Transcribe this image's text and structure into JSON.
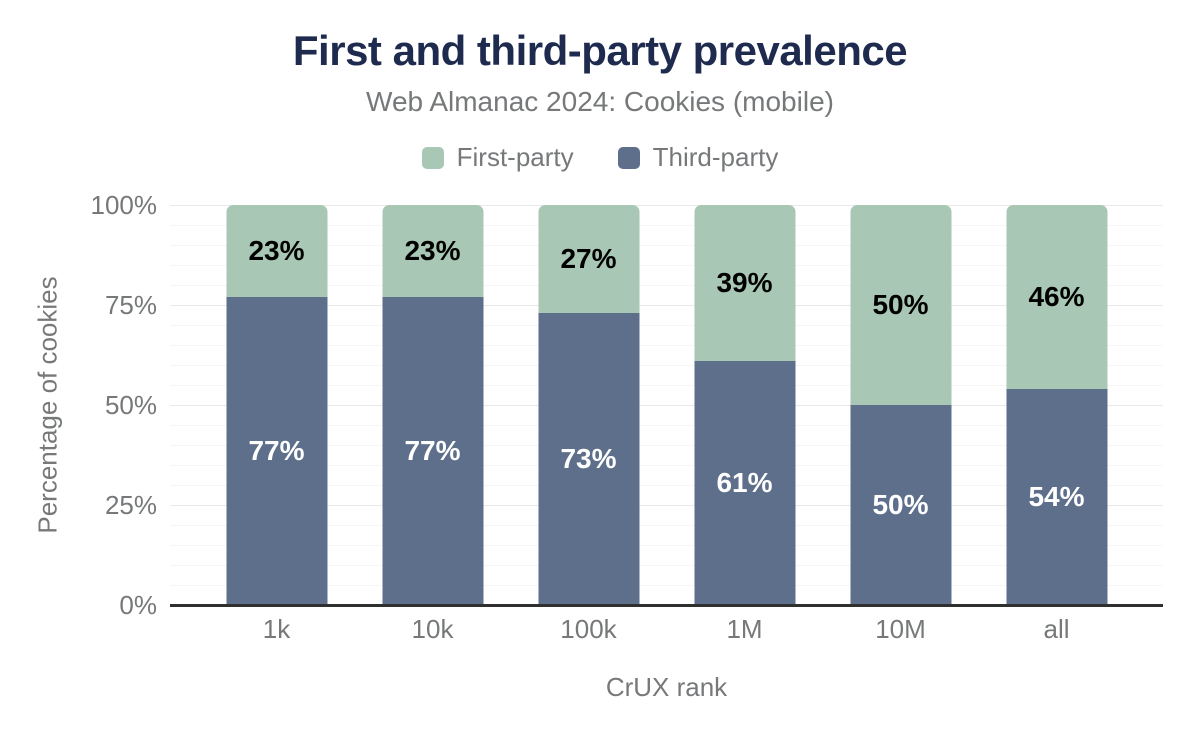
{
  "chart_data": {
    "type": "bar",
    "variant": "stacked-percentage",
    "title": "First and third-party prevalence",
    "subtitle": "Web Almanac 2024: Cookies (mobile)",
    "xlabel": "CrUX rank",
    "ylabel": "Percentage of cookies",
    "categories": [
      "1k",
      "10k",
      "100k",
      "1M",
      "10M",
      "all"
    ],
    "series": [
      {
        "name": "First-party",
        "color": "#a8c7b4",
        "label_color": "#000000",
        "values": [
          23,
          23,
          27,
          39,
          50,
          46
        ],
        "value_labels": [
          "23%",
          "23%",
          "27%",
          "39%",
          "50%",
          "46%"
        ]
      },
      {
        "name": "Third-party",
        "color": "#5e6f8c",
        "label_color": "#ffffff",
        "values": [
          77,
          77,
          73,
          61,
          50,
          54
        ],
        "value_labels": [
          "77%",
          "77%",
          "73%",
          "61%",
          "50%",
          "54%"
        ]
      }
    ],
    "stack_order_bottom_to_top": [
      "Third-party",
      "First-party"
    ],
    "ylim": [
      0,
      100
    ],
    "yticks": [
      {
        "value": 0,
        "label": "0%"
      },
      {
        "value": 25,
        "label": "25%"
      },
      {
        "value": 50,
        "label": "50%"
      },
      {
        "value": 75,
        "label": "75%"
      },
      {
        "value": 100,
        "label": "100%"
      }
    ],
    "grid": {
      "minor_step": 5,
      "major_step": 25,
      "grid_on": true
    },
    "legend_position": "top",
    "colors": {
      "title": "#1f2b4e",
      "muted_text": "#76787a",
      "axis_line": "#2f2f2f",
      "grid_major": "#e9e9ea",
      "grid_minor": "#f5f5f6",
      "background": "#ffffff"
    }
  }
}
